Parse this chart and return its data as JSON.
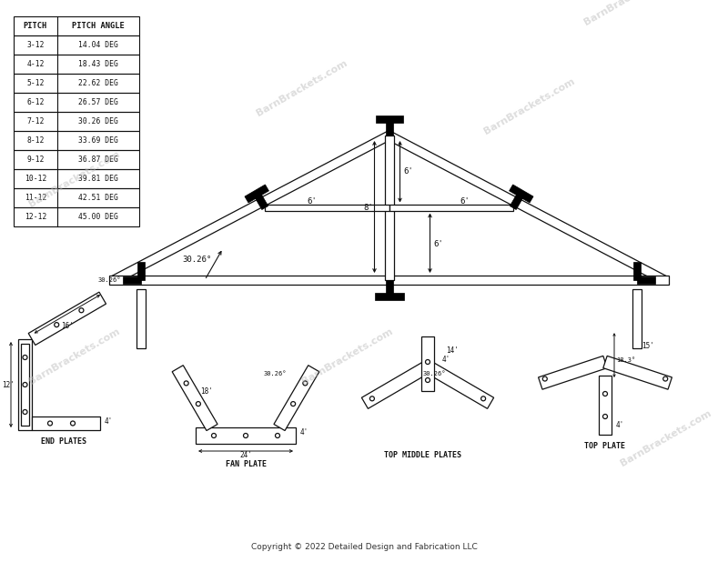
{
  "background_color": "#ffffff",
  "copyright_text": "Copyright © 2022 Detailed Design and Fabrication LLC",
  "table_col1": [
    "PITCH",
    "3-12",
    "4-12",
    "5-12",
    "6-12",
    "7-12",
    "8-12",
    "9-12",
    "10-12",
    "11-12",
    "12-12"
  ],
  "table_col2": [
    "PITCH ANGLE",
    "14.04 DEG",
    "18.43 DEG",
    "22.62 DEG",
    "26.57 DEG",
    "30.26 DEG",
    "33.69 DEG",
    "36.87 DEG",
    "39.81 DEG",
    "42.51 DEG",
    "45.00 DEG"
  ],
  "pitch_deg": 30.26,
  "lc": "#111111",
  "wm_color": "#bbbbbb",
  "wm_alpha": 0.5
}
